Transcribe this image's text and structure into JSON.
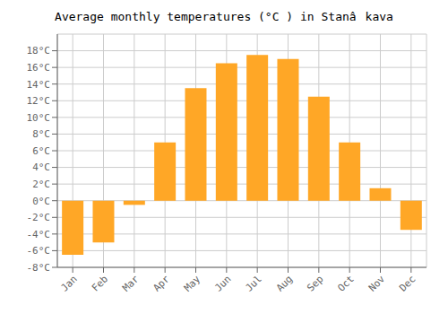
{
  "chart_data": {
    "type": "bar",
    "title": "Average monthly temperatures (°C ) in Stanâkava",
    "categories": [
      "Jan",
      "Feb",
      "Mar",
      "Apr",
      "May",
      "Jun",
      "Jul",
      "Aug",
      "Sep",
      "Oct",
      "Nov",
      "Dec"
    ],
    "values": [
      -6.5,
      -5.0,
      -0.5,
      7.0,
      13.5,
      16.5,
      17.5,
      17.0,
      12.5,
      7.0,
      1.5,
      -3.5
    ],
    "color": "#FFA726",
    "ylim": [
      -8,
      20
    ],
    "yticks": [
      {
        "value": -8,
        "label": "-8°C"
      },
      {
        "value": -6,
        "label": "-6°C"
      },
      {
        "value": -4,
        "label": "-4°C"
      },
      {
        "value": -2,
        "label": "-2°C"
      },
      {
        "value": 0,
        "label": "0°C"
      },
      {
        "value": 2,
        "label": "2°C"
      },
      {
        "value": 4,
        "label": "4°C"
      },
      {
        "value": 6,
        "label": "6°C"
      },
      {
        "value": 8,
        "label": "8°C"
      },
      {
        "value": 10,
        "label": "10°C"
      },
      {
        "value": 12,
        "label": "12°C"
      },
      {
        "value": 14,
        "label": "14°C"
      },
      {
        "value": 16,
        "label": "16°C"
      },
      {
        "value": 18,
        "label": "18°C"
      }
    ],
    "grid": true
  }
}
